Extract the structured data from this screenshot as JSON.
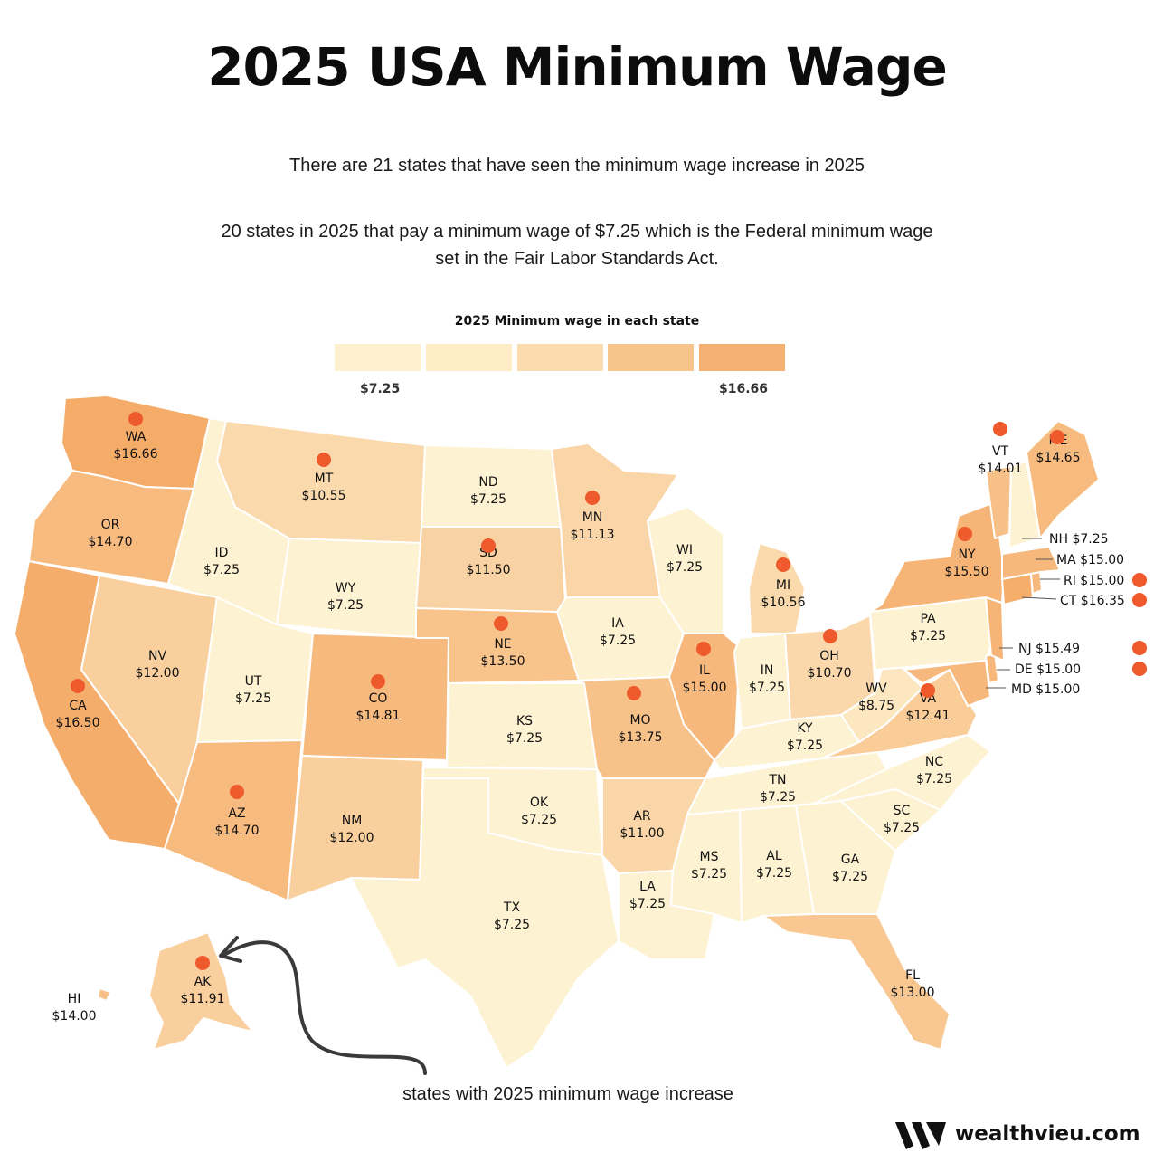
{
  "title": "2025 USA Minimum Wage",
  "subtitle1": "There are 21 states that have seen the minimum wage increase in 2025",
  "subtitle2a": "20 states in 2025 that pay a minimum wage of $7.25 which is the Federal minimum wage",
  "subtitle2b": "set in the Fair Labor Standards Act.",
  "legend": {
    "title": "2025 Minimum wage in each state",
    "min_label": "$7.25",
    "max_label": "$16.66",
    "colors": [
      "#fdf0cf",
      "#fdecc6",
      "#fadcae",
      "#f7c48c",
      "#f5b172"
    ]
  },
  "states": [
    {
      "code": "WA",
      "wage": "$16.66",
      "increase": true
    },
    {
      "code": "OR",
      "wage": "$14.70",
      "increase": false
    },
    {
      "code": "CA",
      "wage": "$16.50",
      "increase": true
    },
    {
      "code": "ID",
      "wage": "$7.25",
      "increase": false
    },
    {
      "code": "NV",
      "wage": "$12.00",
      "increase": false
    },
    {
      "code": "MT",
      "wage": "$10.55",
      "increase": true
    },
    {
      "code": "WY",
      "wage": "$7.25",
      "increase": false
    },
    {
      "code": "UT",
      "wage": "$7.25",
      "increase": false
    },
    {
      "code": "AZ",
      "wage": "$14.70",
      "increase": true
    },
    {
      "code": "CO",
      "wage": "$14.81",
      "increase": true
    },
    {
      "code": "NM",
      "wage": "$12.00",
      "increase": false
    },
    {
      "code": "ND",
      "wage": "$7.25",
      "increase": false
    },
    {
      "code": "SD",
      "wage": "$11.50",
      "increase": true
    },
    {
      "code": "NE",
      "wage": "$13.50",
      "increase": true
    },
    {
      "code": "KS",
      "wage": "$7.25",
      "increase": false
    },
    {
      "code": "OK",
      "wage": "$7.25",
      "increase": false
    },
    {
      "code": "TX",
      "wage": "$7.25",
      "increase": false
    },
    {
      "code": "MN",
      "wage": "$11.13",
      "increase": true
    },
    {
      "code": "IA",
      "wage": "$7.25",
      "increase": false
    },
    {
      "code": "MO",
      "wage": "$13.75",
      "increase": true
    },
    {
      "code": "AR",
      "wage": "$11.00",
      "increase": false
    },
    {
      "code": "LA",
      "wage": "$7.25",
      "increase": false
    },
    {
      "code": "WI",
      "wage": "$7.25",
      "increase": false
    },
    {
      "code": "IL",
      "wage": "$15.00",
      "increase": true
    },
    {
      "code": "MI",
      "wage": "$10.56",
      "increase": true
    },
    {
      "code": "IN",
      "wage": "$7.25",
      "increase": false
    },
    {
      "code": "OH",
      "wage": "$10.70",
      "increase": true
    },
    {
      "code": "KY",
      "wage": "$7.25",
      "increase": false
    },
    {
      "code": "TN",
      "wage": "$7.25",
      "increase": false
    },
    {
      "code": "MS",
      "wage": "$7.25",
      "increase": false
    },
    {
      "code": "AL",
      "wage": "$7.25",
      "increase": false
    },
    {
      "code": "GA",
      "wage": "$7.25",
      "increase": false
    },
    {
      "code": "FL",
      "wage": "$13.00",
      "increase": false
    },
    {
      "code": "SC",
      "wage": "$7.25",
      "increase": false
    },
    {
      "code": "NC",
      "wage": "$7.25",
      "increase": false
    },
    {
      "code": "VA",
      "wage": "$12.41",
      "increase": true
    },
    {
      "code": "WV",
      "wage": "$8.75",
      "increase": false
    },
    {
      "code": "PA",
      "wage": "$7.25",
      "increase": false
    },
    {
      "code": "NY",
      "wage": "$15.50",
      "increase": true
    },
    {
      "code": "VT",
      "wage": "$14.01",
      "increase": true
    },
    {
      "code": "ME",
      "wage": "$14.65",
      "increase": true
    },
    {
      "code": "NH",
      "wage": "$7.25",
      "increase": false
    },
    {
      "code": "MA",
      "wage": "$15.00",
      "increase": false
    },
    {
      "code": "RI",
      "wage": "$15.00",
      "increase": true
    },
    {
      "code": "CT",
      "wage": "$16.35",
      "increase": true
    },
    {
      "code": "NJ",
      "wage": "$15.49",
      "increase": true
    },
    {
      "code": "DE",
      "wage": "$15.00",
      "increase": true
    },
    {
      "code": "MD",
      "wage": "$15.00",
      "increase": false
    },
    {
      "code": "AK",
      "wage": "$11.91",
      "increase": true
    },
    {
      "code": "HI",
      "wage": "$14.00",
      "increase": false
    }
  ],
  "annotation": "states with 2025 minimum wage increase",
  "brand": "wealthvieu.com"
}
